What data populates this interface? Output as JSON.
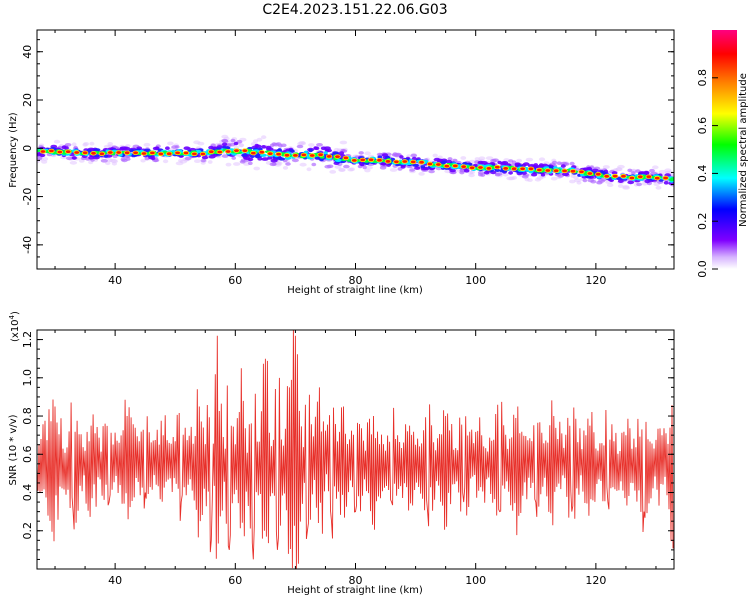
{
  "figure": {
    "title": "C2E4.2023.151.22.06.G03"
  },
  "chart_data": [
    {
      "type": "heatmap",
      "xlabel": "Height of straight line (km)",
      "ylabel": "Frequency (Hz)",
      "xlim": [
        27,
        133
      ],
      "ylim": [
        -50,
        49
      ],
      "x_ticks": [
        40,
        60,
        80,
        100,
        120
      ],
      "x_tick_labels": [
        "40",
        "60",
        "80",
        "100",
        "120"
      ],
      "y_ticks": [
        -40,
        -20,
        0,
        20,
        40
      ],
      "y_tick_labels": [
        "-40",
        "-20",
        "0",
        "20",
        "40"
      ],
      "grid": false,
      "trend": {
        "x": [
          27,
          35,
          45,
          55,
          60,
          65,
          70,
          75,
          80,
          85,
          90,
          95,
          100,
          105,
          110,
          115,
          120,
          125,
          130,
          133
        ],
        "y": [
          -1,
          -2,
          -2,
          -2,
          -1,
          -2,
          -3,
          -3,
          -5,
          -5,
          -6,
          -7,
          -8,
          -8,
          -9,
          -9,
          -11,
          -12,
          -12,
          -13
        ]
      },
      "colorbar": {
        "label": "Normalized spectral amplitude",
        "range": [
          0,
          1
        ],
        "ticks": [
          0.0,
          0.2,
          0.4,
          0.6,
          0.8
        ],
        "tick_labels": [
          "0.0",
          "0.2",
          "0.4",
          "0.6",
          "0.8"
        ],
        "colormap": [
          "#7f00ff",
          "#0000ff",
          "#00ffff",
          "#00ff00",
          "#ffff00",
          "#ff8000",
          "#ff0000",
          "#ff0080"
        ]
      }
    },
    {
      "type": "line",
      "xlabel": "Height of straight line (km)",
      "ylabel": "SNR (10 * v/v)",
      "scale_note": "(x10",
      "scale_exp": "4",
      "scale_close": ")",
      "xlim": [
        27,
        133
      ],
      "ylim": [
        0.0,
        1.25
      ],
      "x_ticks": [
        40,
        60,
        80,
        100,
        120
      ],
      "x_tick_labels": [
        "40",
        "60",
        "80",
        "100",
        "120"
      ],
      "y_ticks": [
        0.2,
        0.4,
        0.6,
        0.8,
        1.0,
        1.2
      ],
      "y_tick_labels": [
        "0.2",
        "0.4",
        "0.6",
        "0.8",
        "1.0",
        "1.2"
      ],
      "grid": false,
      "series": [
        {
          "color": "#e8302a",
          "x": [
            27,
            30,
            33,
            36,
            39,
            42,
            45,
            48,
            51,
            54,
            56,
            57,
            59,
            61,
            63,
            65,
            67,
            69,
            70,
            72,
            74,
            76,
            78,
            80,
            83,
            86,
            89,
            92,
            95,
            98,
            101,
            104,
            107,
            110,
            113,
            116,
            119,
            122,
            125,
            128,
            131,
            133
          ],
          "y": [
            0.55,
            0.85,
            0.3,
            0.75,
            0.35,
            0.8,
            0.4,
            0.7,
            0.35,
            0.85,
            0.15,
            1.22,
            0.1,
            1.05,
            0.05,
            1.1,
            0.1,
            0.95,
            1.22,
            0.2,
            0.95,
            0.25,
            0.85,
            0.3,
            0.8,
            0.35,
            0.75,
            0.3,
            0.8,
            0.35,
            0.7,
            0.3,
            0.85,
            0.35,
            0.8,
            0.3,
            0.75,
            0.35,
            0.7,
            0.3,
            0.7,
            0.15
          ]
        }
      ]
    }
  ]
}
